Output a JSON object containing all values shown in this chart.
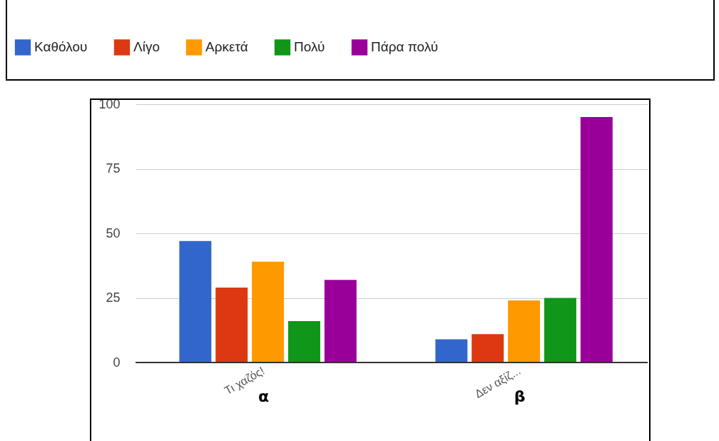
{
  "chart_data": {
    "type": "bar",
    "categories": [
      "Τι χαζός!",
      "Δεν αξίζ..."
    ],
    "series": [
      {
        "name": "Καθόλου",
        "color": "#3366cc",
        "values": [
          47,
          9
        ]
      },
      {
        "name": "Λίγο",
        "color": "#dc3912",
        "values": [
          29,
          11
        ]
      },
      {
        "name": "Αρκετά",
        "color": "#ff9900",
        "values": [
          39,
          24
        ]
      },
      {
        "name": "Πολύ",
        "color": "#109618",
        "values": [
          16,
          25
        ]
      },
      {
        "name": "Πάρα πολύ",
        "color": "#990099",
        "values": [
          32,
          95
        ]
      }
    ],
    "ylim": [
      0,
      100
    ],
    "yticks": [
      0,
      25,
      50,
      75,
      100
    ],
    "grid": "y",
    "legend": "top",
    "annotations": [
      "α",
      "β"
    ]
  }
}
